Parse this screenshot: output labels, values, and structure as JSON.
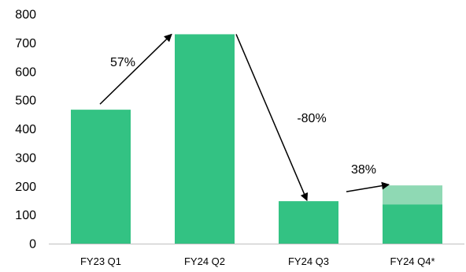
{
  "chart_data": {
    "type": "bar",
    "categories": [
      "FY23 Q1",
      "FY24 Q2",
      "FY24 Q3",
      "FY24 Q4*"
    ],
    "series": [
      {
        "values": [
          467,
          730,
          148,
          137
        ]
      },
      {
        "values": [
          0,
          0,
          0,
          66
        ]
      }
    ],
    "ylim": [
      0,
      800
    ],
    "yticks": [
      "0",
      "100",
      "200",
      "300",
      "400",
      "500",
      "600",
      "700",
      "800"
    ],
    "grid": false,
    "annotations": [
      {
        "text": "57%",
        "from": "FY23 Q1",
        "to": "FY24 Q2"
      },
      {
        "text": "-80%",
        "from": "FY24 Q2",
        "to": "FY24 Q3"
      },
      {
        "text": "38%",
        "from": "FY24 Q3",
        "to": "FY24 Q4*"
      }
    ],
    "colors": {
      "bar": "#33c283",
      "bar_light": "#8fd9b4",
      "axis": "#bfbfbf",
      "arrow": "#000000"
    }
  }
}
